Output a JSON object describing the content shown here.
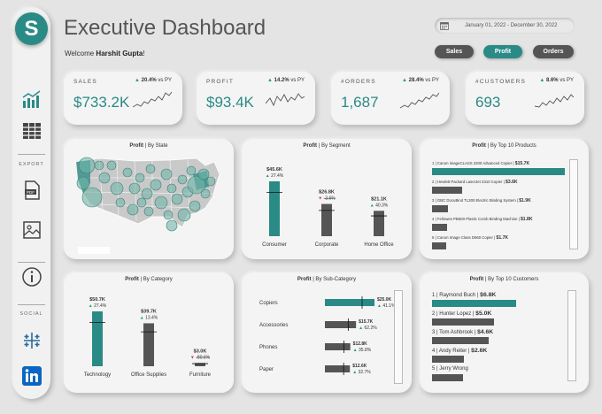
{
  "sidebar": {
    "logo": "S",
    "export_label": "EXPORT",
    "social_label": "SOCIAL"
  },
  "header": {
    "title": "Executive Dashboard",
    "welcome_prefix": "Welcome ",
    "user": "Harshit Gupta",
    "welcome_suffix": "!",
    "date_range": "January 01, 2022 - December 30, 2022"
  },
  "toggles": [
    {
      "label": "Sales",
      "active": false
    },
    {
      "label": "Profit",
      "active": true
    },
    {
      "label": "Orders",
      "active": false
    }
  ],
  "kpis": [
    {
      "label": "SALES",
      "delta": "20.4%",
      "vs": "vs PY",
      "value": "$733.2K"
    },
    {
      "label": "PROFIT",
      "delta": "14.2%",
      "vs": "vs PY",
      "value": "$93.4K"
    },
    {
      "label": "#ORDERS",
      "delta": "28.4%",
      "vs": "vs PY",
      "value": "1,687"
    },
    {
      "label": "#CUSTOMERS",
      "delta": "8.6%",
      "vs": "vs PY",
      "value": "693"
    }
  ],
  "panels": {
    "state": {
      "metric": "Profit",
      "dim": " | By State"
    },
    "segment": {
      "metric": "Profit",
      "dim": " | By Segment",
      "items": [
        {
          "name": "Consumer",
          "value": "$45.6K",
          "delta": "27.4%",
          "dir": "up",
          "amount": 45.6
        },
        {
          "name": "Corporate",
          "value": "$26.8K",
          "delta": "-3.6%",
          "dir": "down",
          "amount": 26.8
        },
        {
          "name": "Home Office",
          "value": "$21.1K",
          "delta": "40.3%",
          "dir": "up",
          "amount": 21.1
        }
      ]
    },
    "products": {
      "metric": "Profit",
      "dim": " | By Top 10 Products",
      "items": [
        {
          "rank": "1",
          "name": "Canon imageCLASS 2200 Advanced Copier",
          "value": "$15.7K",
          "amount": 15.7
        },
        {
          "rank": "2",
          "name": "Hewlett Packard LaserJet 3310 Copier",
          "value": "$3.6K",
          "amount": 3.6
        },
        {
          "rank": "3",
          "name": "GBC DocuBind TL300 Electric Binding System",
          "value": "$1.9K",
          "amount": 1.9
        },
        {
          "rank": "4",
          "name": "Fellowes PB500 Plastic Comb Binding Machine",
          "value": "$1.8K",
          "amount": 1.8
        },
        {
          "rank": "5",
          "name": "Canon Image Class D660 Copier",
          "value": "$1.7K",
          "amount": 1.7
        }
      ]
    },
    "category": {
      "metric": "Profit",
      "dim": " | By Category",
      "items": [
        {
          "name": "Technology",
          "value": "$50.7K",
          "delta": "27.4%",
          "dir": "up",
          "amount": 50.7
        },
        {
          "name": "Office Supplies",
          "value": "$39.7K",
          "delta": "13.4%",
          "dir": "up",
          "amount": 39.7
        },
        {
          "name": "Furniture",
          "value": "$3.0K",
          "delta": "-80.6%",
          "dir": "down",
          "amount": 3.0
        }
      ]
    },
    "subcategory": {
      "metric": "Profit",
      "dim": " | By Sub-Category",
      "items": [
        {
          "name": "Copiers",
          "value": "$25.0K",
          "delta": "41.1%",
          "amount": 25.0
        },
        {
          "name": "Accessories",
          "value": "$15.7K",
          "delta": "62.2%",
          "amount": 15.7
        },
        {
          "name": "Phones",
          "value": "$12.8K",
          "delta": "35.8%",
          "amount": 12.8
        },
        {
          "name": "Paper",
          "value": "$12.6K",
          "delta": "32.7%",
          "amount": 12.6
        }
      ]
    },
    "customers": {
      "metric": "Profit",
      "dim": " | By Top 10 Customers",
      "items": [
        {
          "rank": "1",
          "name": "Raymond Buch",
          "value": "$6.8K",
          "amount": 6.8
        },
        {
          "rank": "2",
          "name": "Hunter Lopez",
          "value": "$5.0K",
          "amount": 5.0
        },
        {
          "rank": "3",
          "name": "Tom Ashbrook",
          "value": "$4.6K",
          "amount": 4.6
        },
        {
          "rank": "4",
          "name": "Andy Reiter",
          "value": "$2.6K",
          "amount": 2.6
        },
        {
          "rank": "5",
          "name": "Jerry Wrong",
          "value": "",
          "amount": 2.5
        }
      ]
    }
  },
  "colors": {
    "teal": "#2a8a86",
    "dark": "#555555",
    "up": "#2aa06a",
    "down": "#d63a3a"
  }
}
